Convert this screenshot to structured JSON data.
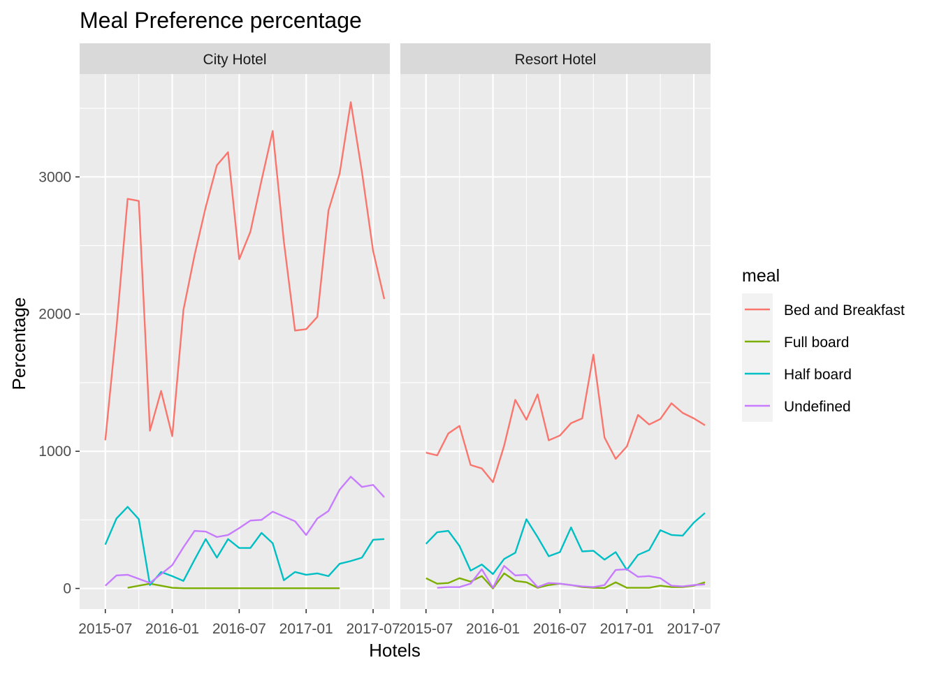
{
  "chart_data": {
    "type": "line",
    "title": "Meal Preference percentage",
    "xlabel": "Hotels",
    "ylabel": "Percentage",
    "ylim": [
      -150,
      3750
    ],
    "y_ticks": [
      0,
      1000,
      2000,
      3000
    ],
    "y_tick_labels": [
      "0",
      "1000",
      "2000",
      "3000"
    ],
    "x_tick_labels": [
      "2015-07",
      "2016-01",
      "2016-07",
      "2017-01",
      "2017-07"
    ],
    "x_start": "2015-07",
    "x_range_months": [
      -2.3,
      25.5
    ],
    "legend": {
      "title": "meal",
      "position": "right",
      "entries": [
        "Bed and Breakfast",
        "Full board",
        "Half board",
        "Undefined"
      ]
    },
    "colors": {
      "Bed and Breakfast": "#F8766D",
      "Full board": "#7CAE00",
      "Half board": "#00BFC4",
      "Undefined": "#C77CFF"
    },
    "panels": [
      {
        "name": "City Hotel",
        "series": [
          {
            "name": "Bed and Breakfast",
            "start_month": 0,
            "values": [
              1080,
              1900,
              2840,
              2825,
              1150,
              1440,
              1110,
              2030,
              2430,
              2780,
              3085,
              3180,
              2400,
              2600,
              2975,
              3335,
              2530,
              1880,
              1890,
              1980,
              2755,
              3025,
              3545,
              3035,
              2460,
              2110
            ]
          },
          {
            "name": "Full board",
            "start_month": 2,
            "values": [
              5,
              20,
              35,
              20,
              5,
              2,
              2,
              2,
              2,
              2,
              2,
              2,
              2,
              2,
              2,
              2,
              2,
              2,
              2,
              2
            ]
          },
          {
            "name": "Half board",
            "start_month": 0,
            "values": [
              320,
              510,
              595,
              505,
              25,
              120,
              90,
              55,
              210,
              360,
              225,
              360,
              295,
              295,
              405,
              330,
              60,
              120,
              100,
              110,
              90,
              180,
              200,
              225,
              355,
              360
            ]
          },
          {
            "name": "Undefined",
            "start_month": 0,
            "values": [
              20,
              95,
              100,
              70,
              40,
              105,
              170,
              300,
              420,
              415,
              375,
              390,
              440,
              495,
              500,
              560,
              525,
              490,
              390,
              510,
              565,
              720,
              815,
              740,
              755,
              665
            ]
          }
        ]
      },
      {
        "name": "Resort Hotel",
        "series": [
          {
            "name": "Bed and Breakfast",
            "start_month": 0,
            "values": [
              990,
              970,
              1130,
              1185,
              900,
              875,
              775,
              1040,
              1375,
              1230,
              1415,
              1080,
              1115,
              1205,
              1240,
              1705,
              1100,
              945,
              1035,
              1265,
              1195,
              1235,
              1350,
              1280,
              1240,
              1190
            ]
          },
          {
            "name": "Full board",
            "start_month": 0,
            "values": [
              75,
              35,
              40,
              75,
              50,
              90,
              0,
              110,
              55,
              45,
              5,
              25,
              35,
              25,
              10,
              5,
              3,
              45,
              5,
              5,
              5,
              20,
              10,
              10,
              20,
              45
            ]
          },
          {
            "name": "Half board",
            "start_month": 0,
            "values": [
              325,
              410,
              420,
              310,
              130,
              175,
              105,
              215,
              260,
              505,
              375,
              235,
              265,
              445,
              270,
              275,
              210,
              265,
              135,
              245,
              280,
              425,
              390,
              385,
              480,
              550
            ]
          },
          {
            "name": "Undefined",
            "start_month": 1,
            "values": [
              5,
              10,
              10,
              35,
              140,
              5,
              165,
              95,
              100,
              10,
              40,
              35,
              25,
              15,
              10,
              25,
              135,
              140,
              85,
              90,
              75,
              20,
              15,
              25,
              30
            ]
          }
        ]
      }
    ]
  }
}
